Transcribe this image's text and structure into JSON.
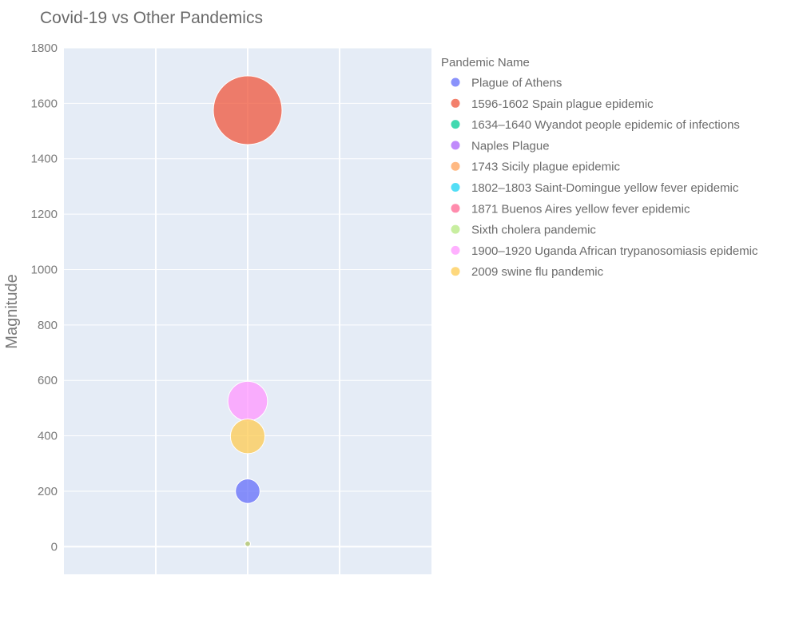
{
  "chart_data": {
    "type": "scatter",
    "title": "Covid-19 vs Other Pandemics",
    "xlabel": "",
    "ylabel": "Magnitude",
    "ylim": [
      -100,
      1800
    ],
    "yticks": [
      0,
      200,
      400,
      600,
      800,
      1000,
      1200,
      1400,
      1600,
      1800
    ],
    "xgrid_lines": 4,
    "grid": true,
    "legend": {
      "title": "Pandemic Name",
      "position": "right"
    },
    "series": [
      {
        "name": "Plague of Athens",
        "color": "#636efa",
        "y": 200
      },
      {
        "name": "1596-1602 Spain plague epidemic",
        "color": "#ef553b",
        "y": 1575
      },
      {
        "name": "1634–1640 Wyandot people epidemic of infections",
        "color": "#00cc96",
        "y": 10
      },
      {
        "name": "Naples Plague",
        "color": "#ab63fa",
        "y": 10
      },
      {
        "name": "1743 Sicily plague epidemic",
        "color": "#ffa15a",
        "y": 10
      },
      {
        "name": "1802–1803 Saint-Domingue yellow fever epidemic",
        "color": "#19d3f3",
        "y": 10
      },
      {
        "name": "1871 Buenos Aires yellow fever epidemic",
        "color": "#ff6692",
        "y": 10
      },
      {
        "name": "Sixth cholera pandemic",
        "color": "#b6e880",
        "y": 10
      },
      {
        "name": "1900–1920 Uganda African trypanosomiasis epidemic",
        "color": "#ff97ff",
        "y": 525
      },
      {
        "name": "2009 swine flu pandemic",
        "color": "#fecb52",
        "y": 398
      }
    ]
  }
}
